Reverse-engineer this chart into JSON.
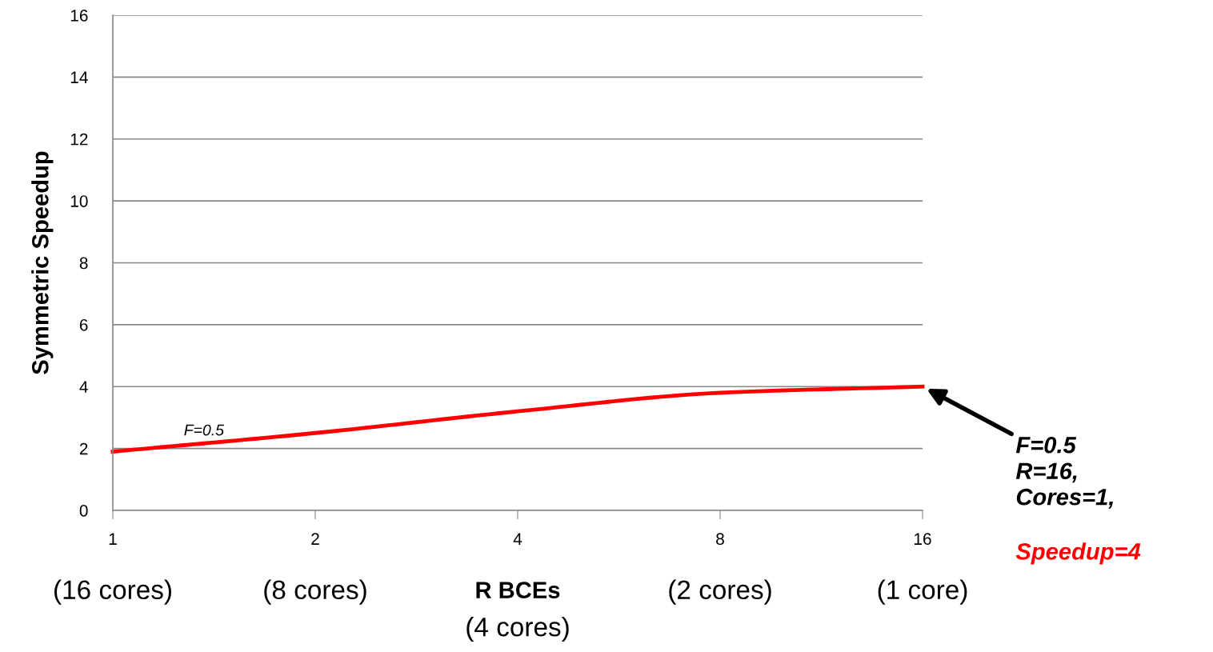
{
  "chart_data": {
    "type": "line",
    "ylabel": "Symmetric Speedup",
    "xlabel": "R BCEs",
    "log": "x",
    "x": [
      1,
      2,
      4,
      8,
      16
    ],
    "series": [
      {
        "name": "F=0.5",
        "color": "#ff0000",
        "values": [
          1.9,
          2.5,
          3.2,
          3.8,
          4.0
        ]
      }
    ],
    "xlim": [
      1,
      16
    ],
    "xticks": [
      1,
      2,
      4,
      8,
      16
    ],
    "ylim": [
      0,
      16
    ],
    "yticks": [
      0,
      2,
      4,
      6,
      8,
      10,
      12,
      14,
      16
    ],
    "grid": "y",
    "annotations": [
      "(16 cores)",
      "(8 cores)",
      "(4 cores)",
      "(2 cores)",
      "(1 core)",
      "F=0.5\nR=16,\nCores=1,",
      "Speedup=4"
    ]
  }
}
